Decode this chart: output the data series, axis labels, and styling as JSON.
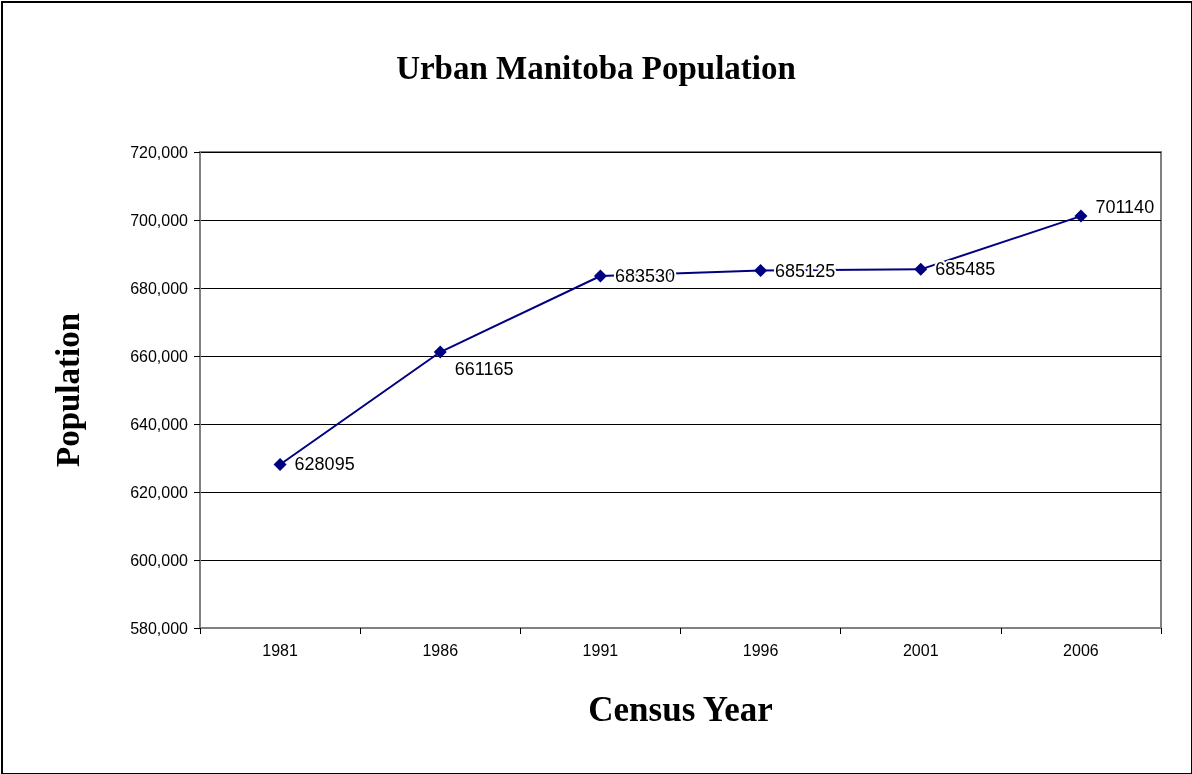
{
  "chart_data": {
    "type": "line",
    "title": "Urban Manitoba Population",
    "xlabel": "Census Year",
    "ylabel": "Population",
    "categories": [
      "1981",
      "1986",
      "1991",
      "1996",
      "2001",
      "2006"
    ],
    "values": [
      628095,
      661165,
      683530,
      685125,
      685485,
      701140
    ],
    "color": "#000080",
    "ylim": [
      580000,
      720000
    ],
    "yticks": [
      {
        "value": 580000,
        "label": "580,000"
      },
      {
        "value": 600000,
        "label": "600,000"
      },
      {
        "value": 620000,
        "label": "620,000"
      },
      {
        "value": 640000,
        "label": "640,000"
      },
      {
        "value": 660000,
        "label": "660,000"
      },
      {
        "value": 680000,
        "label": "680,000"
      },
      {
        "value": 700000,
        "label": "700,000"
      },
      {
        "value": 720000,
        "label": "720,000"
      }
    ],
    "grid": "y",
    "marker": "diamond",
    "line_style": "solid",
    "data_labels": true
  }
}
